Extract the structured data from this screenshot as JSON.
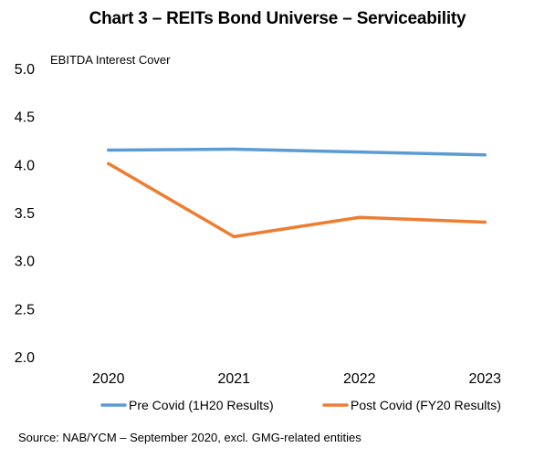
{
  "chart_data": {
    "type": "line",
    "title": "Chart 3 – REITs Bond Universe – Serviceability",
    "ylabel": "EBITDA Interest Cover",
    "xlabel": "",
    "categories": [
      "2020",
      "2021",
      "2022",
      "2023"
    ],
    "ylim": [
      2.0,
      5.0
    ],
    "yticks": [
      "5.0",
      "4.5",
      "4.0",
      "3.5",
      "3.0",
      "2.5",
      "2.0"
    ],
    "ytick_values": [
      5.0,
      4.5,
      4.0,
      3.5,
      3.0,
      2.5,
      2.0
    ],
    "grid": false,
    "legend_position": "bottom",
    "series": [
      {
        "name": "Pre Covid (1H20 Results)",
        "color": "#5b9bd5",
        "values": [
          4.15,
          4.16,
          4.13,
          4.1
        ]
      },
      {
        "name": "Post Covid (FY20 Results)",
        "color": "#ed7d31",
        "values": [
          4.01,
          3.25,
          3.45,
          3.4
        ]
      }
    ],
    "source": "Source: NAB/YCM – September 2020, excl. GMG-related entities"
  }
}
